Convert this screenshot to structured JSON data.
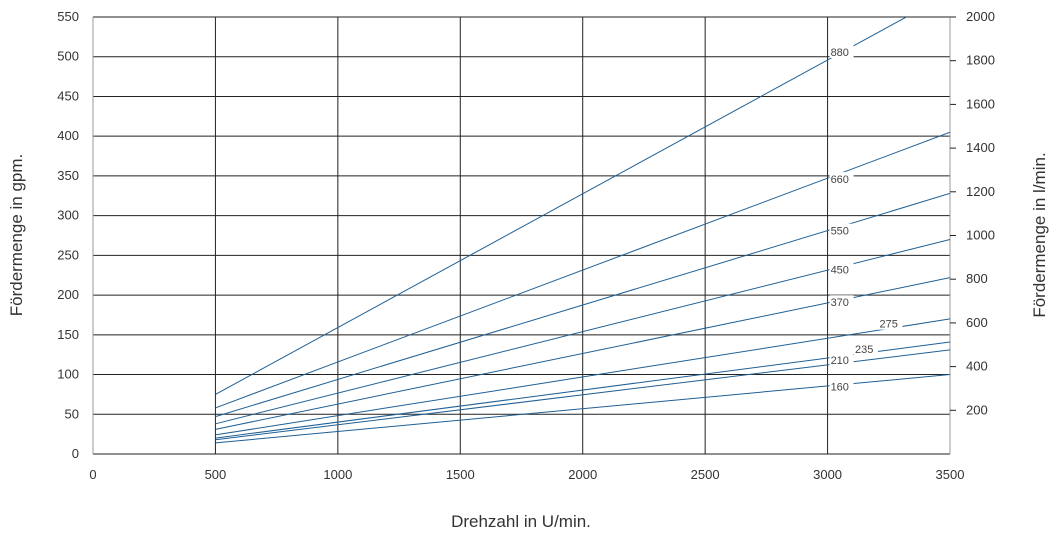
{
  "chart_data": {
    "type": "line",
    "xlabel": "Drehzahl in U/min.",
    "ylabel_left": "Fördermenge in gpm.",
    "ylabel_right": "Fördermenge in l/min.",
    "xlim": [
      0,
      3500
    ],
    "ylim_left": [
      0,
      550
    ],
    "ylim_right": [
      0,
      2000
    ],
    "x_ticks": [
      "0",
      "500",
      "1000",
      "1500",
      "2000",
      "2500",
      "3000",
      "3500"
    ],
    "y_ticks_left": [
      "0",
      "50",
      "100",
      "150",
      "200",
      "250",
      "300",
      "350",
      "400",
      "450",
      "500",
      "550"
    ],
    "y_ticks_right": [
      "200",
      "400",
      "600",
      "800",
      "1000",
      "1200",
      "1400",
      "1600",
      "1800",
      "2000"
    ],
    "grid": true,
    "line_color": "#1f5f94",
    "series": [
      {
        "name": "880",
        "x": [
          500,
          3500
        ],
        "y": [
          75,
          580
        ]
      },
      {
        "name": "660",
        "x": [
          500,
          3500
        ],
        "y": [
          58,
          405
        ]
      },
      {
        "name": "550",
        "x": [
          500,
          3500
        ],
        "y": [
          47,
          328
        ]
      },
      {
        "name": "450",
        "x": [
          500,
          3500
        ],
        "y": [
          38,
          270
        ]
      },
      {
        "name": "370",
        "x": [
          500,
          3500
        ],
        "y": [
          31,
          222
        ]
      },
      {
        "name": "275",
        "x": [
          500,
          3500
        ],
        "y": [
          24,
          170
        ]
      },
      {
        "name": "235",
        "x": [
          500,
          3500
        ],
        "y": [
          20,
          141
        ]
      },
      {
        "name": "210",
        "x": [
          500,
          3500
        ],
        "y": [
          18,
          131
        ]
      },
      {
        "name": "160",
        "x": [
          500,
          3500
        ],
        "y": [
          14,
          100
        ]
      }
    ],
    "series_label_positions": [
      {
        "name": "880",
        "x": 3000,
        "y": 506
      },
      {
        "name": "660",
        "x": 3000,
        "y": 346
      },
      {
        "name": "550",
        "x": 3000,
        "y": 281
      },
      {
        "name": "450",
        "x": 3000,
        "y": 232
      },
      {
        "name": "370",
        "x": 3000,
        "y": 191
      },
      {
        "name": "275",
        "x": 3200,
        "y": 164
      },
      {
        "name": "235",
        "x": 3100,
        "y": 132
      },
      {
        "name": "210",
        "x": 3000,
        "y": 118
      },
      {
        "name": "160",
        "x": 3000,
        "y": 85
      }
    ]
  }
}
